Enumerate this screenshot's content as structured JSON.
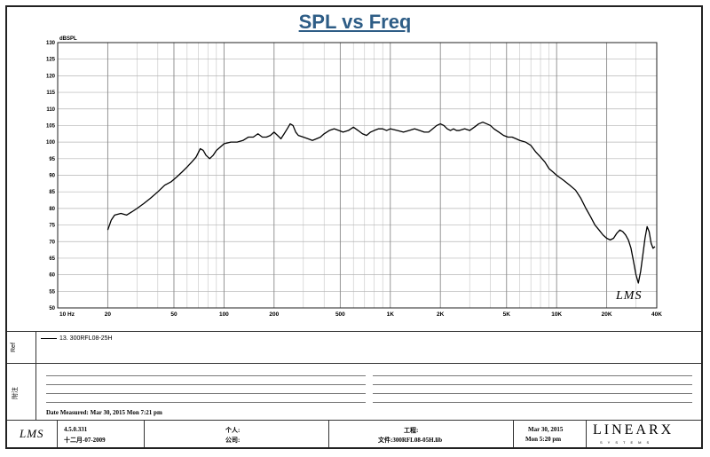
{
  "chart_data": {
    "type": "line",
    "title": "SPL vs Freq",
    "ylabel": "dBSPL",
    "xscale": "log",
    "xlim": [
      10,
      40000
    ],
    "ylim": [
      50,
      130
    ],
    "yticks": [
      50,
      55,
      60,
      65,
      70,
      75,
      80,
      85,
      90,
      95,
      100,
      105,
      110,
      115,
      120,
      125,
      130
    ],
    "xtick_labels": [
      {
        "x": 10,
        "label": "10 Hz"
      },
      {
        "x": 20,
        "label": "20"
      },
      {
        "x": 50,
        "label": "50"
      },
      {
        "x": 100,
        "label": "100"
      },
      {
        "x": 200,
        "label": "200"
      },
      {
        "x": 500,
        "label": "500"
      },
      {
        "x": 1000,
        "label": "1K"
      },
      {
        "x": 2000,
        "label": "2K"
      },
      {
        "x": 5000,
        "label": "5K"
      },
      {
        "x": 10000,
        "label": "10K"
      },
      {
        "x": 20000,
        "label": "20K"
      },
      {
        "x": 40000,
        "label": "40K"
      }
    ],
    "grid": true,
    "series": [
      {
        "name": "13. 300RFL08-25H",
        "color": "#000000",
        "points": [
          [
            20,
            73.5
          ],
          [
            21,
            76.5
          ],
          [
            22,
            78
          ],
          [
            24,
            78.5
          ],
          [
            26,
            78
          ],
          [
            28,
            79
          ],
          [
            30,
            80
          ],
          [
            33,
            81.5
          ],
          [
            36,
            83
          ],
          [
            40,
            85
          ],
          [
            44,
            87
          ],
          [
            48,
            88
          ],
          [
            52,
            89.5
          ],
          [
            56,
            91
          ],
          [
            60,
            92.5
          ],
          [
            64,
            94
          ],
          [
            68,
            95.5
          ],
          [
            72,
            98
          ],
          [
            75,
            97.5
          ],
          [
            78,
            96
          ],
          [
            82,
            95
          ],
          [
            86,
            96
          ],
          [
            90,
            97.5
          ],
          [
            95,
            98.5
          ],
          [
            100,
            99.5
          ],
          [
            110,
            100
          ],
          [
            120,
            100
          ],
          [
            130,
            100.5
          ],
          [
            140,
            101.5
          ],
          [
            150,
            101.5
          ],
          [
            160,
            102.5
          ],
          [
            170,
            101.5
          ],
          [
            180,
            101.5
          ],
          [
            190,
            102
          ],
          [
            200,
            103
          ],
          [
            210,
            102
          ],
          [
            220,
            101
          ],
          [
            230,
            102.5
          ],
          [
            240,
            104
          ],
          [
            250,
            105.5
          ],
          [
            260,
            105
          ],
          [
            270,
            103
          ],
          [
            280,
            102
          ],
          [
            300,
            101.5
          ],
          [
            320,
            101
          ],
          [
            340,
            100.5
          ],
          [
            360,
            101
          ],
          [
            380,
            101.5
          ],
          [
            400,
            102.5
          ],
          [
            430,
            103.5
          ],
          [
            460,
            104
          ],
          [
            490,
            103.5
          ],
          [
            520,
            103
          ],
          [
            560,
            103.5
          ],
          [
            600,
            104.5
          ],
          [
            640,
            103.5
          ],
          [
            680,
            102.5
          ],
          [
            720,
            102
          ],
          [
            760,
            103
          ],
          [
            800,
            103.5
          ],
          [
            850,
            104
          ],
          [
            900,
            104
          ],
          [
            950,
            103.5
          ],
          [
            1000,
            104
          ],
          [
            1100,
            103.5
          ],
          [
            1200,
            103
          ],
          [
            1300,
            103.5
          ],
          [
            1400,
            104
          ],
          [
            1500,
            103.5
          ],
          [
            1600,
            103
          ],
          [
            1700,
            103
          ],
          [
            1800,
            104
          ],
          [
            1900,
            105
          ],
          [
            2000,
            105.5
          ],
          [
            2100,
            105
          ],
          [
            2200,
            104
          ],
          [
            2300,
            103.5
          ],
          [
            2400,
            104
          ],
          [
            2500,
            103.5
          ],
          [
            2600,
            103.5
          ],
          [
            2800,
            104
          ],
          [
            3000,
            103.5
          ],
          [
            3200,
            104.5
          ],
          [
            3400,
            105.5
          ],
          [
            3600,
            106
          ],
          [
            3800,
            105.5
          ],
          [
            4000,
            105
          ],
          [
            4200,
            104
          ],
          [
            4500,
            103
          ],
          [
            4800,
            102
          ],
          [
            5100,
            101.5
          ],
          [
            5400,
            101.5
          ],
          [
            5700,
            101
          ],
          [
            6000,
            100.5
          ],
          [
            6500,
            100
          ],
          [
            7000,
            99
          ],
          [
            7500,
            97
          ],
          [
            8000,
            95.5
          ],
          [
            8500,
            94
          ],
          [
            9000,
            92
          ],
          [
            9500,
            91
          ],
          [
            10000,
            90
          ],
          [
            11000,
            88.5
          ],
          [
            12000,
            87
          ],
          [
            13000,
            85.5
          ],
          [
            14000,
            83
          ],
          [
            15000,
            80
          ],
          [
            16000,
            77.5
          ],
          [
            17000,
            75
          ],
          [
            18000,
            73.5
          ],
          [
            19000,
            72
          ],
          [
            20000,
            71
          ],
          [
            21000,
            70.5
          ],
          [
            22000,
            71
          ],
          [
            23000,
            72.5
          ],
          [
            24000,
            73.5
          ],
          [
            25000,
            73
          ],
          [
            26000,
            72
          ],
          [
            27000,
            70.5
          ],
          [
            28000,
            68
          ],
          [
            29000,
            64
          ],
          [
            30000,
            60
          ],
          [
            31000,
            57.5
          ],
          [
            32000,
            61
          ],
          [
            33000,
            66
          ],
          [
            34000,
            71
          ],
          [
            35000,
            74.5
          ],
          [
            36000,
            73
          ],
          [
            37000,
            69.5
          ],
          [
            38000,
            68
          ],
          [
            39000,
            68.5
          ]
        ]
      }
    ]
  },
  "chart_title": "SPL vs Freq",
  "watermark": "LMS",
  "legend_label": "Ref",
  "legend_entry": "13. 300RFL08-25H",
  "notes_label": "附注",
  "date_measured": "Date Measured: Mar 30, 2015  Mon  7:21 pm",
  "footer": {
    "lms_logo": "LMS",
    "version": "4.5.0.331",
    "version_date": "十二月-07-2009",
    "person_label": "个人:",
    "company_label": "公司:",
    "project_label": "工程:",
    "file_label": "文件:300RFL08-05H.lib",
    "print_date": "Mar 30, 2015",
    "print_time": "Mon  5:20 pm",
    "brand": "LINEARX",
    "brand_sub": "SYSTEMS"
  }
}
